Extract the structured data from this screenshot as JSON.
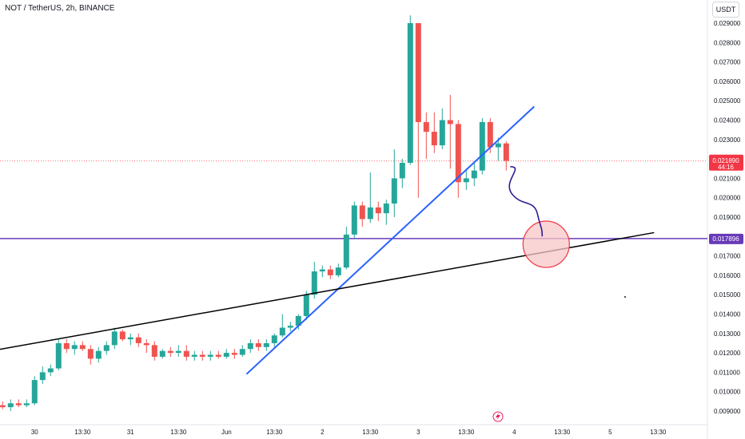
{
  "header": {
    "symbol_title": "NOT / TetherUS, 2h, BINANCE",
    "currency_button": "USDT"
  },
  "price_tags": {
    "last_price": "0.021890",
    "countdown": "44:16",
    "level_price": "0.017896"
  },
  "colors": {
    "up": "#26a69a",
    "down": "#ef5350",
    "support_line": "#673ab7",
    "trend_blue": "#2962ff",
    "trend_black": "#000000",
    "arrow": "#311b92",
    "circle_stroke": "#f23645",
    "circle_fill": "#f8c7c7",
    "last_price_tag": "#f23645"
  },
  "chart_data": {
    "type": "candlestick",
    "ylim": [
      0.0088,
      0.0298
    ],
    "y_ticks": [
      "0.029000",
      "0.028000",
      "0.027000",
      "0.026000",
      "0.025000",
      "0.024000",
      "0.023000",
      "0.022000",
      "0.021000",
      "0.020000",
      "0.019000",
      "0.018000",
      "0.017000",
      "0.016000",
      "0.015000",
      "0.014000",
      "0.013000",
      "0.012000",
      "0.011000",
      "0.010000",
      "0.009000"
    ],
    "x_ticks": [
      {
        "label": "30",
        "bar": 4
      },
      {
        "label": "13:30",
        "bar": 10
      },
      {
        "label": "31",
        "bar": 16
      },
      {
        "label": "13:30",
        "bar": 22
      },
      {
        "label": "Jun",
        "bar": 28
      },
      {
        "label": "13:30",
        "bar": 34
      },
      {
        "label": "2",
        "bar": 40
      },
      {
        "label": "13:30",
        "bar": 46
      },
      {
        "label": "3",
        "bar": 52
      },
      {
        "label": "13:30",
        "bar": 58
      },
      {
        "label": "4",
        "bar": 64
      },
      {
        "label": "13:30",
        "bar": 70
      },
      {
        "label": "5",
        "bar": 76
      },
      {
        "label": "13:30",
        "bar": 82
      }
    ],
    "candles": [
      [
        0.0093,
        0.0095,
        0.0091,
        0.0092
      ],
      [
        0.0092,
        0.0096,
        0.009,
        0.0094
      ],
      [
        0.0094,
        0.0096,
        0.0092,
        0.0093
      ],
      [
        0.0093,
        0.0096,
        0.0092,
        0.0094
      ],
      [
        0.0094,
        0.0108,
        0.0093,
        0.0106
      ],
      [
        0.0106,
        0.0113,
        0.0104,
        0.011
      ],
      [
        0.011,
        0.0114,
        0.0108,
        0.0112
      ],
      [
        0.0112,
        0.0127,
        0.0111,
        0.0125
      ],
      [
        0.0125,
        0.0127,
        0.012,
        0.0122
      ],
      [
        0.0122,
        0.0126,
        0.0119,
        0.0124
      ],
      [
        0.0124,
        0.0126,
        0.0121,
        0.0122
      ],
      [
        0.0122,
        0.0124,
        0.0114,
        0.0117
      ],
      [
        0.0117,
        0.0123,
        0.0115,
        0.0121
      ],
      [
        0.0121,
        0.0126,
        0.0119,
        0.0124
      ],
      [
        0.0124,
        0.0133,
        0.0122,
        0.0131
      ],
      [
        0.0131,
        0.0132,
        0.0126,
        0.0127
      ],
      [
        0.0127,
        0.013,
        0.0124,
        0.0128
      ],
      [
        0.0128,
        0.013,
        0.0123,
        0.0125
      ],
      [
        0.0125,
        0.0127,
        0.012,
        0.0124
      ],
      [
        0.0124,
        0.0126,
        0.0116,
        0.0118
      ],
      [
        0.0118,
        0.0122,
        0.0117,
        0.0121
      ],
      [
        0.0121,
        0.0123,
        0.0118,
        0.012
      ],
      [
        0.012,
        0.0124,
        0.0118,
        0.0121
      ],
      [
        0.0121,
        0.0124,
        0.0116,
        0.0118
      ],
      [
        0.0118,
        0.0121,
        0.0116,
        0.0119
      ],
      [
        0.0119,
        0.0121,
        0.0116,
        0.0118
      ],
      [
        0.0118,
        0.0121,
        0.0116,
        0.0119
      ],
      [
        0.0119,
        0.0121,
        0.0117,
        0.0118
      ],
      [
        0.0118,
        0.0122,
        0.0117,
        0.012
      ],
      [
        0.012,
        0.0122,
        0.0117,
        0.0119
      ],
      [
        0.0119,
        0.0124,
        0.0118,
        0.0122
      ],
      [
        0.0122,
        0.0127,
        0.012,
        0.0125
      ],
      [
        0.0125,
        0.0127,
        0.0121,
        0.0123
      ],
      [
        0.0123,
        0.0127,
        0.0121,
        0.0125
      ],
      [
        0.0125,
        0.013,
        0.0122,
        0.0129
      ],
      [
        0.0129,
        0.014,
        0.0128,
        0.0133
      ],
      [
        0.0133,
        0.0136,
        0.0131,
        0.0134
      ],
      [
        0.0134,
        0.014,
        0.0132,
        0.0139
      ],
      [
        0.0139,
        0.0152,
        0.0137,
        0.015
      ],
      [
        0.015,
        0.0167,
        0.0148,
        0.0162
      ],
      [
        0.0162,
        0.0165,
        0.0159,
        0.0163
      ],
      [
        0.0163,
        0.0165,
        0.0158,
        0.016
      ],
      [
        0.016,
        0.0166,
        0.0159,
        0.0164
      ],
      [
        0.0164,
        0.0185,
        0.0163,
        0.0181
      ],
      [
        0.0181,
        0.0198,
        0.0179,
        0.0196
      ],
      [
        0.0196,
        0.0198,
        0.0185,
        0.0189
      ],
      [
        0.0189,
        0.0213,
        0.0187,
        0.0195
      ],
      [
        0.0195,
        0.0198,
        0.0188,
        0.0192
      ],
      [
        0.0192,
        0.0199,
        0.0186,
        0.0197
      ],
      [
        0.0197,
        0.0225,
        0.019,
        0.021
      ],
      [
        0.021,
        0.022,
        0.0205,
        0.0218
      ],
      [
        0.0218,
        0.0294,
        0.0217,
        0.029
      ],
      [
        0.029,
        0.029,
        0.02,
        0.0239
      ],
      [
        0.0239,
        0.0244,
        0.022,
        0.0234
      ],
      [
        0.0234,
        0.0244,
        0.0223,
        0.0227
      ],
      [
        0.0227,
        0.0246,
        0.0225,
        0.024
      ],
      [
        0.024,
        0.0253,
        0.0215,
        0.0238
      ],
      [
        0.0238,
        0.024,
        0.02,
        0.0208
      ],
      [
        0.0208,
        0.0215,
        0.0204,
        0.021
      ],
      [
        0.021,
        0.0219,
        0.0206,
        0.0214
      ],
      [
        0.0214,
        0.0241,
        0.0212,
        0.0239
      ],
      [
        0.0239,
        0.0241,
        0.0223,
        0.0226
      ],
      [
        0.0226,
        0.0231,
        0.0219,
        0.0228
      ],
      [
        0.0228,
        0.0229,
        0.0214,
        0.0219
      ]
    ],
    "annotations": {
      "horizontal_level": 0.017896,
      "last_price_line": 0.02189,
      "blue_trendline": [
        [
          30.5,
          0.0109
        ],
        [
          66.5,
          0.0247
        ]
      ],
      "black_trendline": [
        [
          -1.5,
          0.0121
        ],
        [
          81.5,
          0.0182
        ]
      ],
      "target_circle": {
        "bar": 68,
        "price": 0.0176
      },
      "arrow_path": [
        [
          63.5,
          0.0216
        ],
        [
          64.5,
          0.0207
        ],
        [
          66.5,
          0.0195
        ],
        [
          67.5,
          0.018
        ]
      ]
    }
  }
}
